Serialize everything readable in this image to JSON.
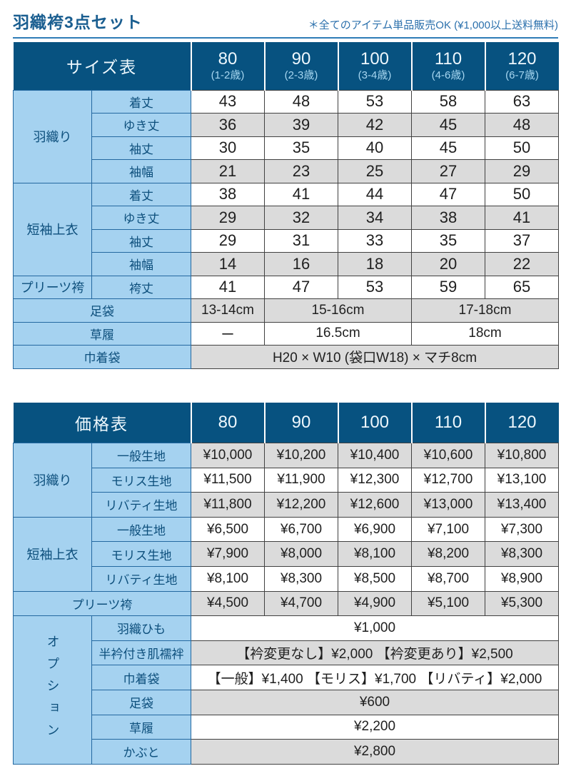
{
  "page": {
    "title": "羽織袴3点セット",
    "note": "＊全てのアイテム単品販売OK (¥1,000以上送料無料)"
  },
  "colors": {
    "header_bg": "#075280",
    "label_bg": "#a5d2f0",
    "stripe_gray": "#dbdbdb",
    "navy_text": "#0d4f7c",
    "title_text": "#1a5e90",
    "note_text": "#2b70ac",
    "underline": "#2e7cb7",
    "border_dark": "#414141",
    "border_navy": "#2468a0",
    "header_number_text": "#edf7fd",
    "header_age_text": "#a6d6f0"
  },
  "size_table": {
    "title": "サイズ表",
    "columns": [
      {
        "size": "80",
        "age": "(1-2歳)"
      },
      {
        "size": "90",
        "age": "(2-3歳)"
      },
      {
        "size": "100",
        "age": "(3-4歳)"
      },
      {
        "size": "110",
        "age": "(4-6歳)"
      },
      {
        "size": "120",
        "age": "(6-7歳)"
      }
    ],
    "rows": [
      [
        {
          "t": "羽織り",
          "cls": "cat",
          "rs": 4
        },
        {
          "t": "着丈",
          "cls": "lbl"
        },
        {
          "t": "43"
        },
        {
          "t": "48"
        },
        {
          "t": "53"
        },
        {
          "t": "58"
        },
        {
          "t": "63"
        }
      ],
      [
        {
          "t": "ゆき丈",
          "cls": "lbl"
        },
        {
          "t": "36"
        },
        {
          "t": "39"
        },
        {
          "t": "42"
        },
        {
          "t": "45"
        },
        {
          "t": "48"
        }
      ],
      [
        {
          "t": "袖丈",
          "cls": "lbl"
        },
        {
          "t": "30"
        },
        {
          "t": "35"
        },
        {
          "t": "40"
        },
        {
          "t": "45"
        },
        {
          "t": "50"
        }
      ],
      [
        {
          "t": "袖幅",
          "cls": "lbl"
        },
        {
          "t": "21"
        },
        {
          "t": "23"
        },
        {
          "t": "25"
        },
        {
          "t": "27"
        },
        {
          "t": "29"
        }
      ],
      [
        {
          "t": "短袖上衣",
          "cls": "cat",
          "rs": 4
        },
        {
          "t": "着丈",
          "cls": "lbl"
        },
        {
          "t": "38"
        },
        {
          "t": "41"
        },
        {
          "t": "44"
        },
        {
          "t": "47"
        },
        {
          "t": "50"
        }
      ],
      [
        {
          "t": "ゆき丈",
          "cls": "lbl"
        },
        {
          "t": "29"
        },
        {
          "t": "32"
        },
        {
          "t": "34"
        },
        {
          "t": "38"
        },
        {
          "t": "41"
        }
      ],
      [
        {
          "t": "袖丈",
          "cls": "lbl"
        },
        {
          "t": "29"
        },
        {
          "t": "31"
        },
        {
          "t": "33"
        },
        {
          "t": "35"
        },
        {
          "t": "37"
        }
      ],
      [
        {
          "t": "袖幅",
          "cls": "lbl"
        },
        {
          "t": "14"
        },
        {
          "t": "16"
        },
        {
          "t": "18"
        },
        {
          "t": "20"
        },
        {
          "t": "22"
        }
      ],
      [
        {
          "t": "プリーツ袴",
          "cls": "cat"
        },
        {
          "t": "袴丈",
          "cls": "lbl"
        },
        {
          "t": "41"
        },
        {
          "t": "47"
        },
        {
          "t": "53"
        },
        {
          "t": "59"
        },
        {
          "t": "65"
        }
      ],
      [
        {
          "t": "足袋",
          "cls": "lbl",
          "cs": 2
        },
        {
          "t": "13-14cm"
        },
        {
          "t": "15-16cm",
          "cs": 2
        },
        {
          "t": "17-18cm",
          "cs": 2
        }
      ],
      [
        {
          "t": "草履",
          "cls": "lbl",
          "cs": 2
        },
        {
          "t": "ー"
        },
        {
          "t": "16.5cm",
          "cs": 2
        },
        {
          "t": "18cm",
          "cs": 2
        }
      ],
      [
        {
          "t": "巾着袋",
          "cls": "lbl",
          "cs": 2
        },
        {
          "t": "H20 × W10 (袋口W18) × マチ8cm",
          "cs": 5
        }
      ]
    ],
    "small_font_rows": [
      9,
      10,
      11
    ]
  },
  "price_table": {
    "title": "価格表",
    "columns": [
      "80",
      "90",
      "100",
      "110",
      "120"
    ],
    "rows": [
      [
        {
          "t": "羽織り",
          "cls": "cat",
          "rs": 3
        },
        {
          "t": "一般生地",
          "cls": "lbl"
        },
        {
          "t": "¥10,000"
        },
        {
          "t": "¥10,200"
        },
        {
          "t": "¥10,400"
        },
        {
          "t": "¥10,600"
        },
        {
          "t": "¥10,800"
        }
      ],
      [
        {
          "t": "モリス生地",
          "cls": "lbl"
        },
        {
          "t": "¥11,500"
        },
        {
          "t": "¥11,900"
        },
        {
          "t": "¥12,300"
        },
        {
          "t": "¥12,700"
        },
        {
          "t": "¥13,100"
        }
      ],
      [
        {
          "t": "リバティ生地",
          "cls": "lbl"
        },
        {
          "t": "¥11,800"
        },
        {
          "t": "¥12,200"
        },
        {
          "t": "¥12,600"
        },
        {
          "t": "¥13,000"
        },
        {
          "t": "¥13,400"
        }
      ],
      [
        {
          "t": "短袖上衣",
          "cls": "cat",
          "rs": 3
        },
        {
          "t": "一般生地",
          "cls": "lbl"
        },
        {
          "t": "¥6,500"
        },
        {
          "t": "¥6,700"
        },
        {
          "t": "¥6,900"
        },
        {
          "t": "¥7,100"
        },
        {
          "t": "¥7,300"
        }
      ],
      [
        {
          "t": "モリス生地",
          "cls": "lbl"
        },
        {
          "t": "¥7,900"
        },
        {
          "t": "¥8,000"
        },
        {
          "t": "¥8,100"
        },
        {
          "t": "¥8,200"
        },
        {
          "t": "¥8,300"
        }
      ],
      [
        {
          "t": "リバティ生地",
          "cls": "lbl"
        },
        {
          "t": "¥8,100"
        },
        {
          "t": "¥8,300"
        },
        {
          "t": "¥8,500"
        },
        {
          "t": "¥8,700"
        },
        {
          "t": "¥8,900"
        }
      ],
      [
        {
          "t": "プリーツ袴",
          "cls": "lbl",
          "cs": 2
        },
        {
          "t": "¥4,500"
        },
        {
          "t": "¥4,700"
        },
        {
          "t": "¥4,900"
        },
        {
          "t": "¥5,100"
        },
        {
          "t": "¥5,300"
        }
      ],
      [
        {
          "t": "オプション",
          "cls": "cat vert",
          "rs": 6
        },
        {
          "t": "羽織ひも",
          "cls": "lbl"
        },
        {
          "t": "¥1,000",
          "cs": 5
        }
      ],
      [
        {
          "t": "半衿付き肌襦袢",
          "cls": "lbl"
        },
        {
          "t": "【衿変更なし】¥2,000 【衿変更あり】¥2,500",
          "cs": 5
        }
      ],
      [
        {
          "t": "巾着袋",
          "cls": "lbl"
        },
        {
          "t": "【一般】¥1,400 【モリス】¥1,700 【リバティ】¥2,000",
          "cs": 5
        }
      ],
      [
        {
          "t": "足袋",
          "cls": "lbl"
        },
        {
          "t": "¥600",
          "cs": 5
        }
      ],
      [
        {
          "t": "草履",
          "cls": "lbl"
        },
        {
          "t": "¥2,200",
          "cs": 5
        }
      ],
      [
        {
          "t": "かぶと",
          "cls": "lbl"
        },
        {
          "t": "¥2,800",
          "cs": 5
        }
      ]
    ]
  }
}
